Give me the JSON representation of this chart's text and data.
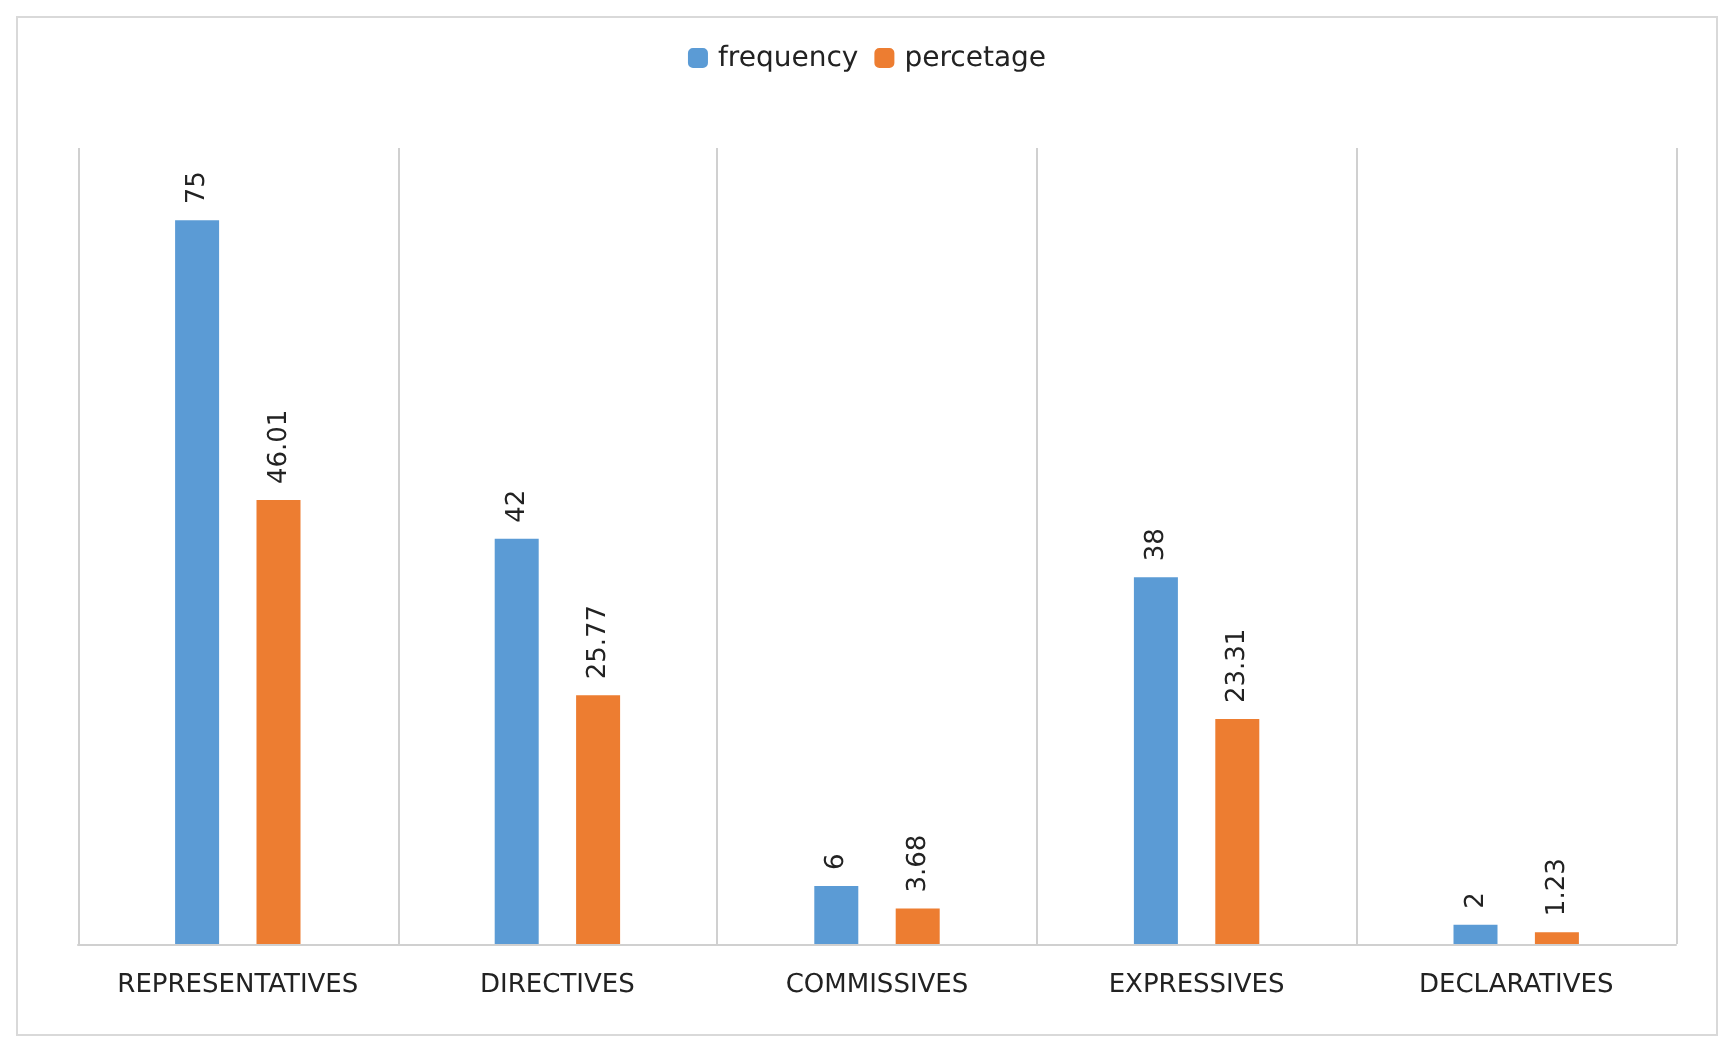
{
  "chart_data": {
    "type": "bar",
    "categories": [
      "REPRESENTATIVES",
      "DIRECTIVES",
      "COMMISSIVES",
      "EXPRESSIVES",
      "DECLARATIVES"
    ],
    "series": [
      {
        "name": "frequency",
        "color": "#5b9bd5",
        "values": [
          75,
          42,
          6,
          38,
          2
        ]
      },
      {
        "name": "percetage",
        "color": "#ed7d31",
        "values": [
          46.01,
          25.77,
          3.68,
          23.31,
          1.23
        ]
      }
    ],
    "data_labels": true,
    "grid": "x",
    "legend": "top"
  }
}
